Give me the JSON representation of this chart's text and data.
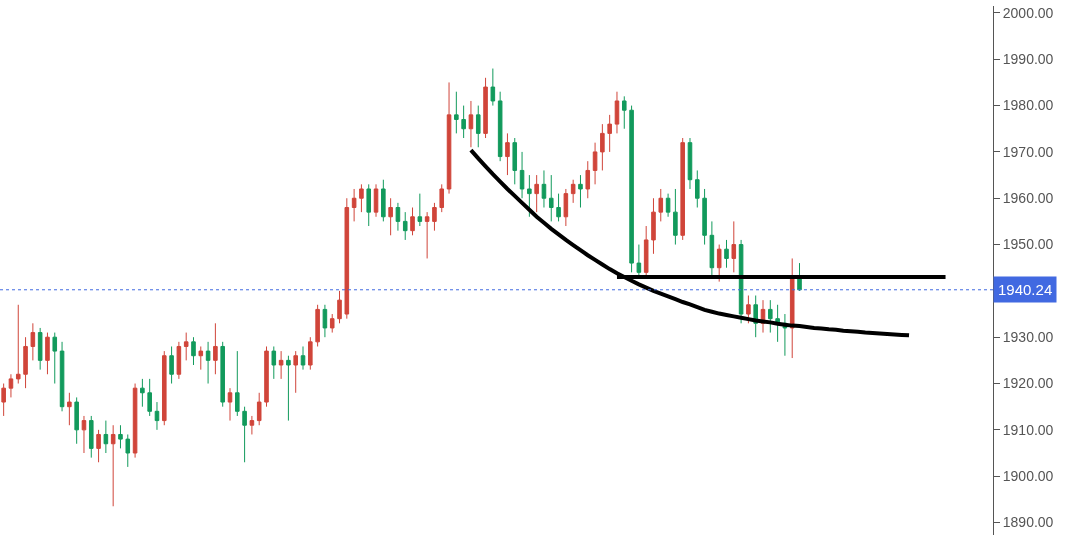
{
  "chart_data": {
    "type": "candlestick",
    "categories": [
      null,
      null,
      null,
      null,
      null,
      null,
      null,
      null,
      null,
      null,
      null,
      null,
      null,
      null,
      null,
      null,
      null,
      null,
      null,
      null,
      null,
      null,
      null,
      null,
      null,
      null,
      null,
      null,
      null,
      null,
      null,
      null,
      null,
      null,
      null,
      null,
      null,
      null,
      null,
      null,
      null,
      null,
      null,
      null,
      null,
      null,
      null,
      null,
      null,
      null,
      null,
      null,
      null,
      null,
      null,
      null,
      null,
      null,
      null,
      null,
      null,
      null,
      null,
      null,
      null,
      null,
      null,
      null,
      null,
      null,
      null,
      null,
      null,
      null,
      null,
      null,
      null,
      null,
      null,
      null,
      null,
      null,
      null,
      null,
      null,
      null,
      null,
      null,
      null,
      null,
      null,
      null,
      null,
      null,
      null,
      null,
      null,
      null,
      null,
      null,
      null,
      null,
      null,
      null,
      null,
      null,
      null,
      null,
      null,
      null,
      null,
      null,
      null,
      null,
      null,
      null,
      null,
      null,
      null,
      null,
      null,
      null,
      null,
      null,
      null,
      null,
      null,
      null,
      null,
      null,
      null,
      null,
      null,
      null,
      null,
      null
    ],
    "ohlc": [
      [
        1916,
        1920,
        1913,
        1919
      ],
      [
        1919,
        1922,
        1917,
        1921
      ],
      [
        1921,
        1937,
        1920,
        1922
      ],
      [
        1922,
        1930,
        1919,
        1928
      ],
      [
        1928,
        1933,
        1925,
        1931
      ],
      [
        1931,
        1932,
        1923,
        1925
      ],
      [
        1925,
        1931,
        1922,
        1930
      ],
      [
        1930,
        1931,
        1920,
        1927
      ],
      [
        1927,
        1929,
        1914,
        1915
      ],
      [
        1915,
        1918,
        1911,
        1916
      ],
      [
        1916,
        1917,
        1907,
        1910
      ],
      [
        1910,
        1913,
        1905,
        1912
      ],
      [
        1912,
        1913,
        1904,
        1906
      ],
      [
        1906,
        1910,
        1903,
        1909
      ],
      [
        1909,
        1912,
        1905,
        1907
      ],
      [
        1907,
        1911,
        1893.5,
        1909
      ],
      [
        1909,
        1911,
        1906,
        1908
      ],
      [
        1908,
        1909,
        1902,
        1905
      ],
      [
        1905,
        1920,
        1904,
        1919
      ],
      [
        1919,
        1921,
        1915,
        1918
      ],
      [
        1918,
        1921,
        1913,
        1914
      ],
      [
        1914,
        1916,
        1910,
        1912
      ],
      [
        1912,
        1927,
        1911,
        1926
      ],
      [
        1926,
        1928,
        1920,
        1922
      ],
      [
        1922,
        1929,
        1921,
        1928
      ],
      [
        1928,
        1931,
        1925,
        1929
      ],
      [
        1929,
        1930,
        1924,
        1926
      ],
      [
        1926,
        1928,
        1923,
        1927
      ],
      [
        1927,
        1929,
        1920,
        1925
      ],
      [
        1925,
        1933,
        1922,
        1928
      ],
      [
        1928,
        1929,
        1915,
        1916
      ],
      [
        1916,
        1919,
        1912,
        1918
      ],
      [
        1918,
        1927,
        1913,
        1914
      ],
      [
        1914,
        1915,
        1903,
        1911
      ],
      [
        1911,
        1913,
        1909,
        1912
      ],
      [
        1912,
        1918,
        1911,
        1916
      ],
      [
        1916,
        1928,
        1915,
        1927
      ],
      [
        1927,
        1928,
        1921,
        1924
      ],
      [
        1924,
        1927,
        1921,
        1925
      ],
      [
        1925,
        1926,
        1912,
        1924
      ],
      [
        1924,
        1927,
        1918,
        1926
      ],
      [
        1926,
        1928,
        1923,
        1924
      ],
      [
        1924,
        1930,
        1923,
        1929
      ],
      [
        1929,
        1937,
        1928,
        1936
      ],
      [
        1936,
        1937,
        1930,
        1932
      ],
      [
        1932,
        1935,
        1931,
        1934
      ],
      [
        1934,
        1940,
        1933,
        1938
      ],
      [
        1935,
        1960,
        1934,
        1958
      ],
      [
        1958,
        1962,
        1955,
        1960
      ],
      [
        1960,
        1963,
        1957,
        1962
      ],
      [
        1962,
        1963,
        1954,
        1957
      ],
      [
        1957,
        1963,
        1956,
        1962
      ],
      [
        1962,
        1964,
        1955,
        1956
      ],
      [
        1956,
        1960,
        1952,
        1958
      ],
      [
        1958,
        1959,
        1953,
        1955
      ],
      [
        1955,
        1957,
        1951,
        1953
      ],
      [
        1953,
        1958,
        1952,
        1956
      ],
      [
        1956,
        1961,
        1954,
        1955
      ],
      [
        1955,
        1957,
        1947,
        1956
      ],
      [
        1955,
        1959,
        1953,
        1958
      ],
      [
        1958,
        1963,
        1957,
        1962
      ],
      [
        1962,
        1985,
        1961,
        1978
      ],
      [
        1978,
        1983,
        1974,
        1977
      ],
      [
        1977,
        1980,
        1973,
        1975
      ],
      [
        1975,
        1981,
        1971,
        1978
      ],
      [
        1978,
        1980,
        1971,
        1974
      ],
      [
        1974,
        1986,
        1973,
        1984
      ],
      [
        1984,
        1988,
        1980,
        1981
      ],
      [
        1981,
        1983,
        1968,
        1969
      ],
      [
        1969,
        1974,
        1965,
        1972
      ],
      [
        1972,
        1973,
        1963,
        1966
      ],
      [
        1966,
        1970,
        1960,
        1962
      ],
      [
        1962,
        1965,
        1956,
        1961
      ],
      [
        1961,
        1965,
        1957,
        1963
      ],
      [
        1963,
        1966,
        1958,
        1960
      ],
      [
        1960,
        1965,
        1955,
        1958
      ],
      [
        1958,
        1961,
        1955,
        1956
      ],
      [
        1956,
        1962,
        1954,
        1961
      ],
      [
        1961,
        1964,
        1959,
        1963
      ],
      [
        1963,
        1965,
        1958,
        1962
      ],
      [
        1962,
        1968,
        1960,
        1966
      ],
      [
        1966,
        1972,
        1963,
        1970
      ],
      [
        1970,
        1976,
        1966,
        1974
      ],
      [
        1974,
        1978,
        1970,
        1976
      ],
      [
        1976,
        1983,
        1974,
        1981
      ],
      [
        1981,
        1982,
        1975,
        1979
      ],
      [
        1979,
        1980,
        1944,
        1946
      ],
      [
        1946,
        1950,
        1943,
        1944
      ],
      [
        1944,
        1954,
        1943,
        1951
      ],
      [
        1951,
        1960,
        1948,
        1957
      ],
      [
        1957,
        1962,
        1955,
        1960
      ],
      [
        1960,
        1961,
        1956,
        1957
      ],
      [
        1957,
        1962,
        1950,
        1952
      ],
      [
        1952,
        1973,
        1951,
        1972
      ],
      [
        1972,
        1973,
        1962,
        1964
      ],
      [
        1964,
        1966,
        1958,
        1960
      ],
      [
        1960,
        1962,
        1950,
        1952
      ],
      [
        1952,
        1955,
        1943,
        1945
      ],
      [
        1945,
        1950,
        1942,
        1949
      ],
      [
        1949,
        1951,
        1945,
        1947
      ],
      [
        1947,
        1955,
        1944,
        1950
      ],
      [
        1950,
        1951,
        1933,
        1935
      ],
      [
        1935,
        1939,
        1933,
        1937
      ],
      [
        1937,
        1939,
        1930,
        1933
      ],
      [
        1933,
        1938,
        1931,
        1936
      ],
      [
        1936,
        1938,
        1931,
        1934
      ],
      [
        1934,
        1937,
        1929,
        1933
      ],
      [
        1933,
        1935,
        1926,
        1932
      ],
      [
        1932,
        1947,
        1925.5,
        1943
      ],
      [
        1943,
        1946,
        1940,
        1940.24
      ],
      null,
      null,
      null,
      null,
      null,
      null,
      null,
      null,
      null,
      null,
      null,
      null,
      null,
      null,
      null,
      null,
      null,
      null,
      null,
      null,
      null,
      null,
      null,
      null,
      null,
      null
    ],
    "colors": [
      "#d0453a",
      "#d0453a",
      "#d0453a",
      "#d0453a",
      "#d0453a",
      "#129a5c",
      "#d0453a",
      "#129a5c",
      "#129a5c",
      "#d0453a",
      "#129a5c",
      "#d0453a",
      "#129a5c",
      "#d0453a",
      "#129a5c",
      "#d0453a",
      "#129a5c",
      "#129a5c",
      "#d0453a",
      "#129a5c",
      "#129a5c",
      "#129a5c",
      "#d0453a",
      "#129a5c",
      "#d0453a",
      "#d0453a",
      "#129a5c",
      "#d0453a",
      "#129a5c",
      "#d0453a",
      "#129a5c",
      "#d0453a",
      "#129a5c",
      "#129a5c",
      "#d0453a",
      "#d0453a",
      "#d0453a",
      "#129a5c",
      "#d0453a",
      "#129a5c",
      "#d0453a",
      "#129a5c",
      "#d0453a",
      "#d0453a",
      "#129a5c",
      "#d0453a",
      "#d0453a",
      "#d0453a",
      "#d0453a",
      "#d0453a",
      "#129a5c",
      "#d0453a",
      "#129a5c",
      "#d0453a",
      "#129a5c",
      "#129a5c",
      "#d0453a",
      "#129a5c",
      "#d0453a",
      "#d0453a",
      "#d0453a",
      "#d0453a",
      "#129a5c",
      "#129a5c",
      "#d0453a",
      "#129a5c",
      "#d0453a",
      "#129a5c",
      "#129a5c",
      "#d0453a",
      "#129a5c",
      "#129a5c",
      "#129a5c",
      "#d0453a",
      "#129a5c",
      "#129a5c",
      "#129a5c",
      "#d0453a",
      "#d0453a",
      "#129a5c",
      "#d0453a",
      "#d0453a",
      "#d0453a",
      "#d0453a",
      "#d0453a",
      "#129a5c",
      "#129a5c",
      "#129a5c",
      "#d0453a",
      "#d0453a",
      "#d0453a",
      "#129a5c",
      "#129a5c",
      "#d0453a",
      "#129a5c",
      "#129a5c",
      "#129a5c",
      "#129a5c",
      "#d0453a",
      "#129a5c",
      "#d0453a",
      "#129a5c",
      "#d0453a",
      "#129a5c",
      "#d0453a",
      "#129a5c",
      "#129a5c",
      "#129a5c",
      "#d0453a",
      "#129a5c",
      null,
      null,
      null,
      null,
      null,
      null,
      null,
      null,
      null,
      null,
      null,
      null,
      null,
      null,
      null,
      null,
      null,
      null,
      null,
      null,
      null,
      null,
      null,
      null,
      null,
      null
    ],
    "series": [
      {
        "type": "line",
        "color": "#000000",
        "values": [
          null,
          null,
          null,
          null,
          null,
          null,
          null,
          null,
          null,
          null,
          null,
          null,
          null,
          null,
          null,
          null,
          null,
          null,
          null,
          null,
          null,
          null,
          null,
          null,
          null,
          null,
          null,
          null,
          null,
          null,
          null,
          null,
          null,
          null,
          null,
          null,
          null,
          null,
          null,
          null,
          null,
          null,
          null,
          null,
          null,
          null,
          null,
          null,
          null,
          null,
          null,
          null,
          null,
          null,
          null,
          null,
          null,
          null,
          null,
          null,
          null,
          null,
          null,
          null,
          1970.4,
          1968.6,
          1966.9,
          1965.2,
          1963.6,
          1962.0,
          1960.5,
          1959.0,
          1957.5,
          1956.0,
          1954.7,
          1953.4,
          1952.2,
          1951.0,
          1949.9,
          1948.8,
          1947.7,
          1946.7,
          1945.7,
          1944.7,
          1943.8,
          1943.0,
          1942.2,
          1941.4,
          1940.7,
          1940.0,
          1939.4,
          1938.8,
          1938.2,
          1937.6,
          1937.1,
          1936.5,
          1935.9,
          1935.5,
          1935.1,
          1934.8,
          1934.5,
          1934.2,
          1933.9,
          1933.6,
          1933.4,
          1933.2,
          1932.9,
          1932.7,
          1932.5,
          1932.4,
          1932.2,
          1932.0,
          1931.9,
          1931.7,
          1931.6,
          1931.4,
          1931.3,
          1931.2,
          1931.0,
          1930.9,
          1930.8,
          1930.7,
          1930.6,
          1930.5,
          1930.4,
          null,
          null,
          null,
          null,
          null,
          null,
          null,
          null,
          null,
          null,
          null
        ]
      },
      {
        "type": "line",
        "color": "#000000",
        "values": [
          null,
          null,
          null,
          null,
          null,
          null,
          null,
          null,
          null,
          null,
          null,
          null,
          null,
          null,
          null,
          null,
          null,
          null,
          null,
          null,
          null,
          null,
          null,
          null,
          null,
          null,
          null,
          null,
          null,
          null,
          null,
          null,
          null,
          null,
          null,
          null,
          null,
          null,
          null,
          null,
          null,
          null,
          null,
          null,
          null,
          null,
          null,
          null,
          null,
          null,
          null,
          null,
          null,
          null,
          null,
          null,
          null,
          null,
          null,
          null,
          null,
          null,
          null,
          null,
          null,
          null,
          null,
          null,
          null,
          null,
          null,
          null,
          null,
          null,
          null,
          null,
          null,
          null,
          null,
          null,
          null,
          null,
          null,
          null,
          1943,
          1943,
          1943,
          1943,
          1943,
          1943,
          1943,
          1943,
          1943,
          1943,
          1943,
          1943,
          1943,
          1943,
          1943,
          1943,
          1943,
          1943,
          1943,
          1943,
          1943,
          1943,
          1943,
          1943,
          1943,
          1943,
          1943,
          1943,
          1943,
          1943,
          1943,
          1943,
          1943,
          1943,
          1943,
          1943,
          1943,
          1943,
          1943,
          1943,
          1943,
          1943,
          1943,
          1943,
          1943,
          1943,
          null,
          null,
          null,
          null,
          null,
          null
        ]
      }
    ],
    "ref_lines": [
      {
        "axis": "y",
        "value": 1940.24,
        "label": "1940.24",
        "color": "#4169e1",
        "line_style": "dotted"
      }
    ],
    "ylim": [
      1887.3,
      2001.5
    ],
    "yticks": [
      {
        "value": 1890,
        "label": "1890.00"
      },
      {
        "value": 1900,
        "label": "1900.00"
      },
      {
        "value": 1910,
        "label": "1910.00"
      },
      {
        "value": 1920,
        "label": "1920.00"
      },
      {
        "value": 1930,
        "label": "1930.00"
      },
      {
        "value": 1940,
        "label": null
      },
      {
        "value": 1950,
        "label": "1950.00"
      },
      {
        "value": 1960,
        "label": "1960.00"
      },
      {
        "value": 1970,
        "label": "1970.00"
      },
      {
        "value": 1980,
        "label": "1980.00"
      },
      {
        "value": 1990,
        "label": "1990.00"
      },
      {
        "value": 2000,
        "label": "2000.00"
      }
    ],
    "tick_labels": "y",
    "grid": false
  }
}
